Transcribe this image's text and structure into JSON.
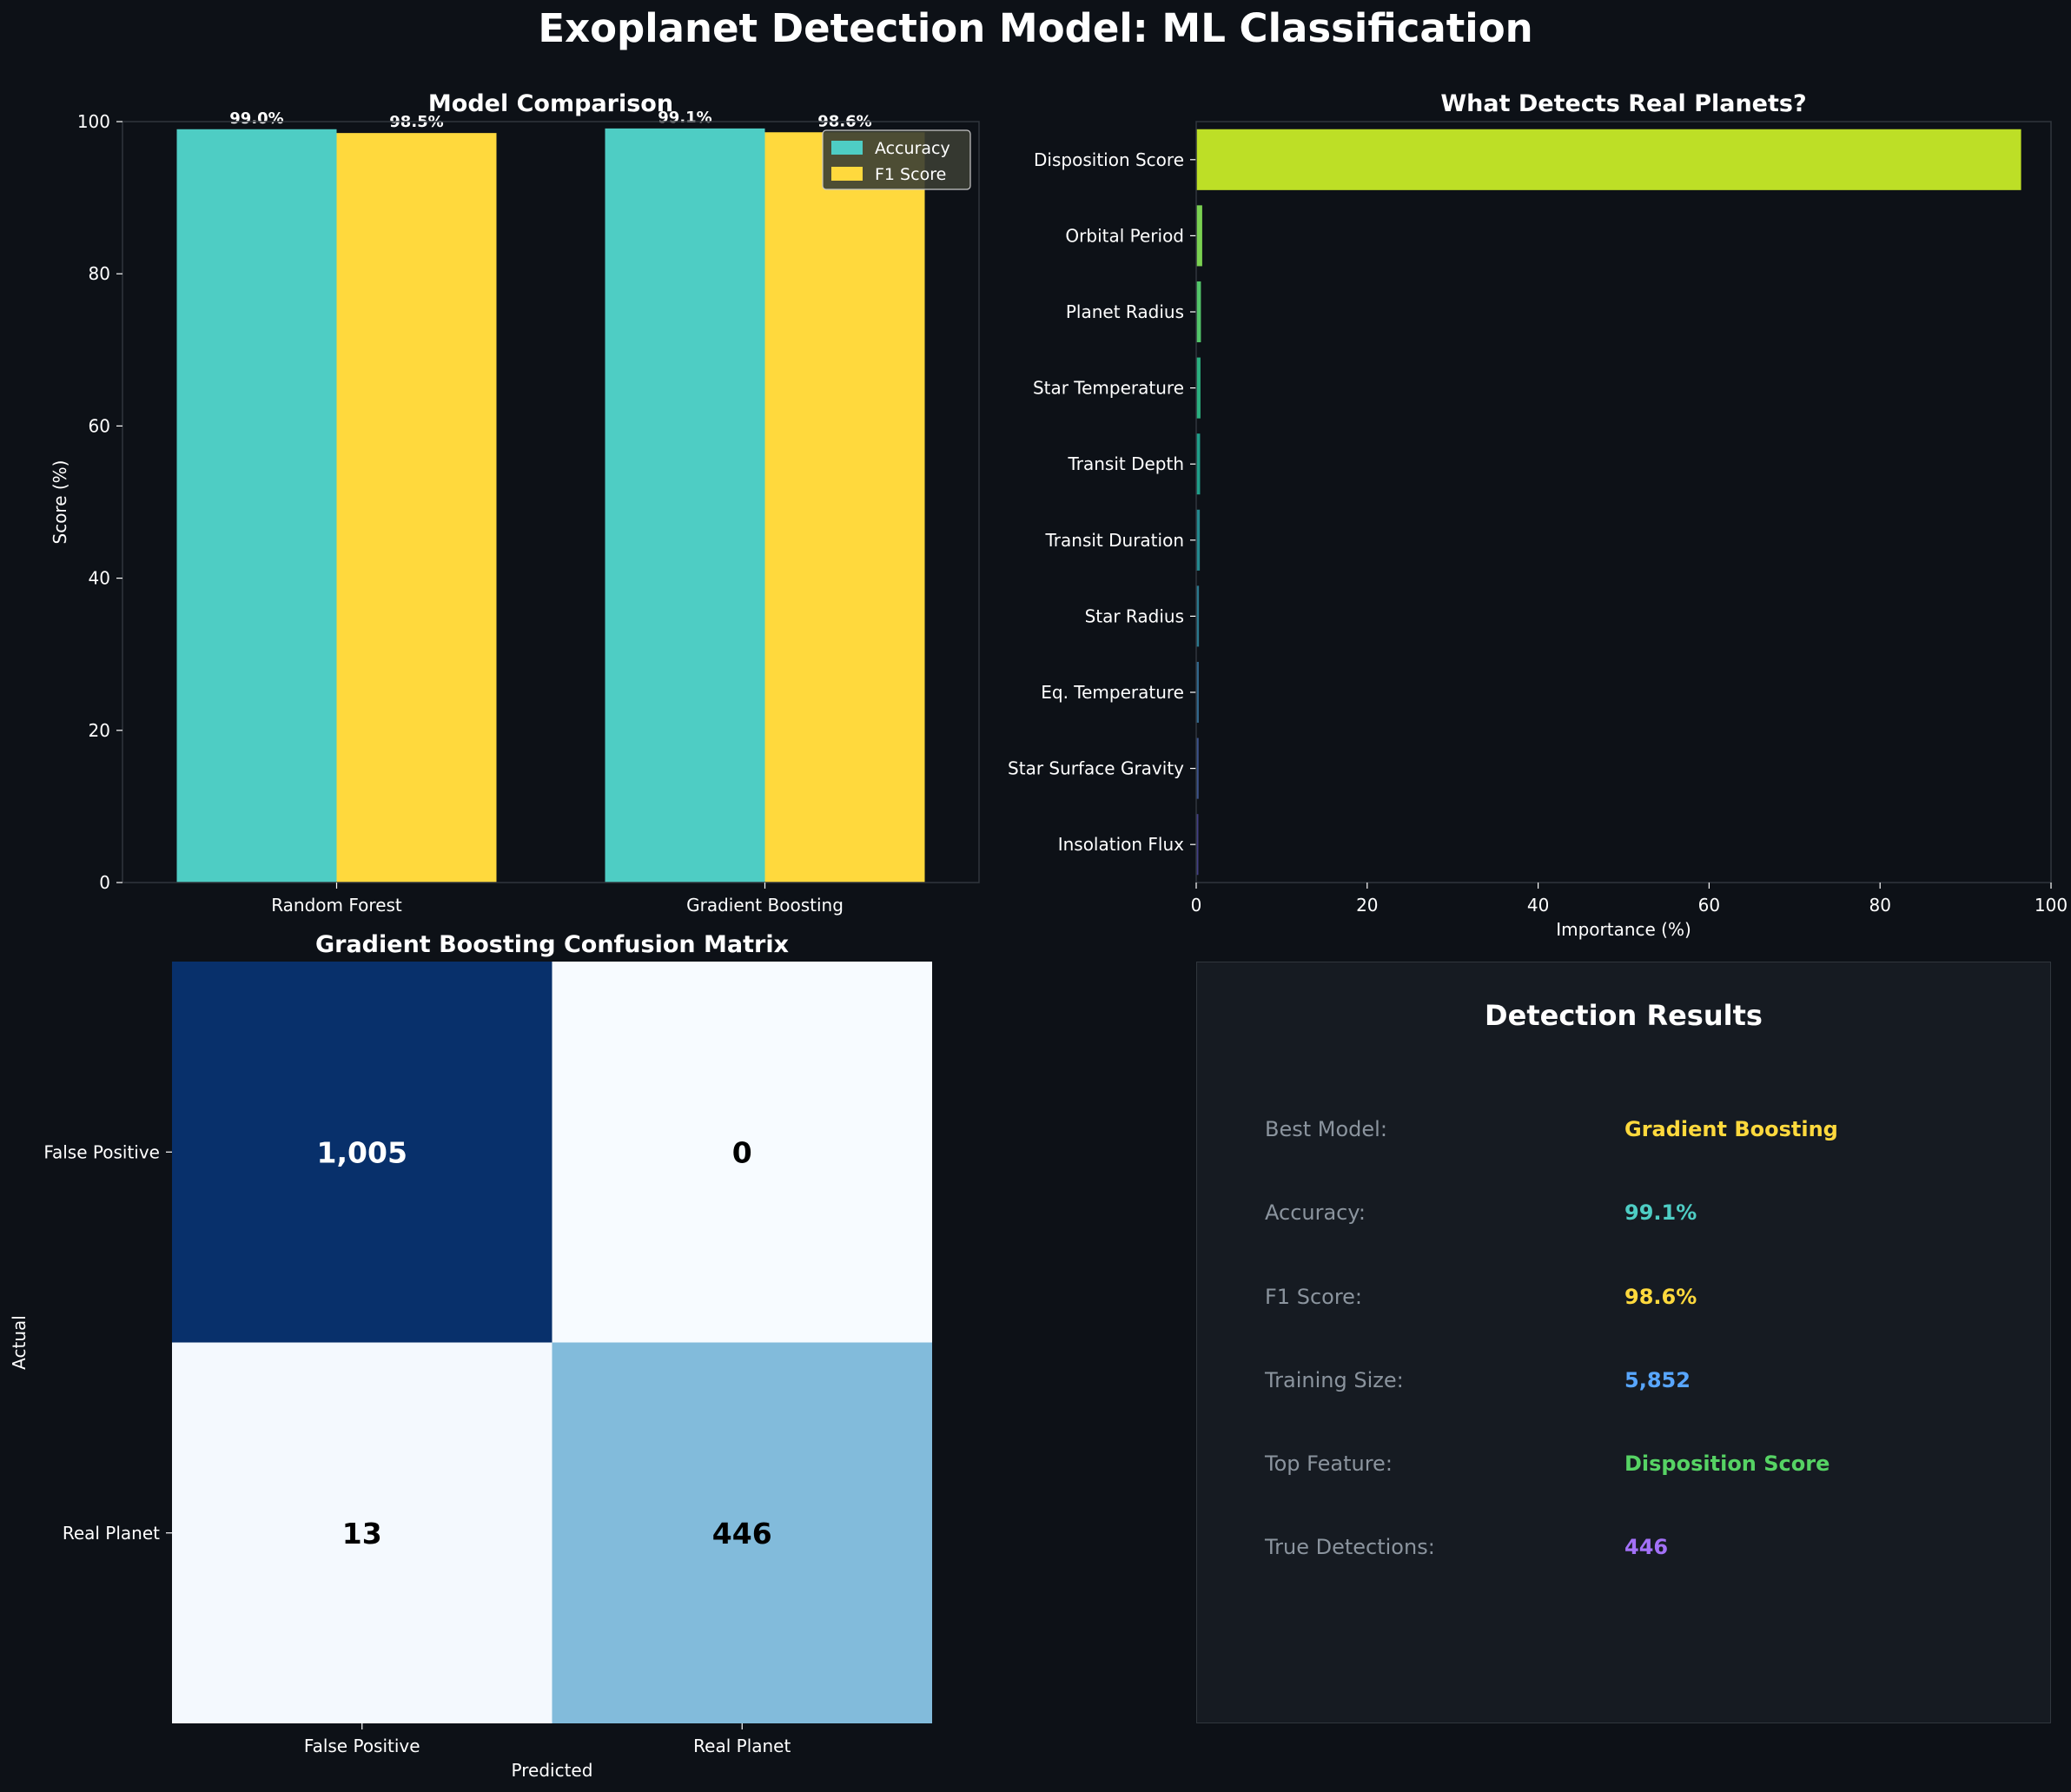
{
  "title": "Exoplanet Detection Model: ML Classification",
  "chart_data": [
    {
      "type": "bar",
      "title": "Model Comparison",
      "xlabel": "",
      "ylabel": "Score (%)",
      "ylim": [
        0,
        100
      ],
      "yticks": [
        "0",
        "20",
        "40",
        "60",
        "80",
        "100"
      ],
      "categories": [
        "Random Forest",
        "Gradient Boosting"
      ],
      "series": [
        {
          "name": "Accuracy",
          "color": "#4ecdc4",
          "values": [
            99.0,
            99.1
          ],
          "labels": [
            "99.0%",
            "99.1%"
          ]
        },
        {
          "name": "F1 Score",
          "color": "#ffd93d",
          "values": [
            98.5,
            98.6
          ],
          "labels": [
            "98.5%",
            "98.6%"
          ]
        }
      ],
      "legend": "top-right",
      "grid": false
    },
    {
      "type": "bar",
      "orientation": "horizontal",
      "title": "What Detects Real Planets?",
      "xlabel": "Importance (%)",
      "ylabel": "",
      "xlim": [
        0,
        100
      ],
      "xticks": [
        "0",
        "20",
        "40",
        "60",
        "80",
        "100"
      ],
      "categories": [
        "Disposition Score",
        "Orbital Period",
        "Planet Radius",
        "Star Temperature",
        "Transit Depth",
        "Transit Duration",
        "Star Radius",
        "Eq. Temperature",
        "Star Surface Gravity",
        "Insolation Flux"
      ],
      "values": [
        96.5,
        0.7,
        0.55,
        0.5,
        0.45,
        0.42,
        0.32,
        0.3,
        0.28,
        0.25
      ],
      "colors": [
        "#bddf26",
        "#7ad151",
        "#52c569",
        "#2ab07f",
        "#1f9e89",
        "#23888e",
        "#2a788e",
        "#31688e",
        "#3b528b",
        "#433e85"
      ],
      "grid": false
    },
    {
      "type": "heatmap",
      "title": "Gradient Boosting Confusion Matrix",
      "xlabel": "Predicted",
      "ylabel": "Actual",
      "x_categories": [
        "False Positive",
        "Real Planet"
      ],
      "y_categories": [
        "False Positive",
        "Real Planet"
      ],
      "values": [
        [
          1005,
          0
        ],
        [
          13,
          446
        ]
      ],
      "labels": [
        [
          "1,005",
          "0"
        ],
        [
          "13",
          "446"
        ]
      ],
      "colormap": "Blues"
    }
  ],
  "summary": {
    "title": "Detection Results",
    "rows": [
      {
        "label": "Best Model:",
        "value": "Gradient Boosting",
        "color": "#ffd93d"
      },
      {
        "label": "Accuracy:",
        "value": "99.1%",
        "color": "#4ecdc4"
      },
      {
        "label": "F1 Score:",
        "value": "98.6%",
        "color": "#ffd93d"
      },
      {
        "label": "Training Size:",
        "value": "5,852",
        "color": "#58a6ff"
      },
      {
        "label": "Top Feature:",
        "value": "Disposition Score",
        "color": "#56d364"
      },
      {
        "label": "True Detections:",
        "value": "446",
        "color": "#a371f7"
      }
    ]
  }
}
